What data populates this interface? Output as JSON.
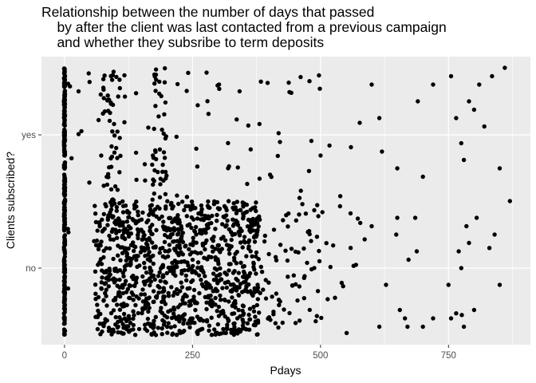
{
  "chart_data": {
    "type": "scatter",
    "title": [
      "Relationship between the number of days that passed",
      "    by after the client was last contacted from a previous campaign",
      "    and whether they subsribe to term deposits"
    ],
    "xlabel": "Pdays",
    "ylabel": "Clients subscribed?",
    "x_ticks": [
      0,
      250,
      500,
      750
    ],
    "x_tick_labels": [
      "0",
      "250",
      "500",
      "750"
    ],
    "xlim": [
      -45,
      910
    ],
    "categories": [
      "no",
      "yes"
    ],
    "y_jitter": 0.4,
    "grid": true,
    "background": "#ebebeb",
    "grid_major_color": "#ffffff",
    "point_color": "#000000",
    "series": [
      {
        "category": "no",
        "dense_ranges": [
          [
            -1,
            1
          ],
          [
            60,
            120
          ],
          [
            120,
            200
          ],
          [
            200,
            380
          ]
        ],
        "spread_x": [
          5,
          60,
          110,
          140,
          170,
          190,
          210,
          250,
          280,
          300,
          330,
          350,
          370,
          380,
          385,
          390,
          395,
          400,
          405,
          410,
          415,
          420,
          425,
          430,
          435,
          440,
          445,
          450,
          455,
          460,
          465,
          470,
          475,
          480,
          485,
          490,
          495,
          500,
          505,
          510,
          515,
          520,
          525,
          530,
          535,
          540,
          545,
          550,
          555,
          560,
          565,
          570,
          575,
          580,
          590
        ],
        "sparse_points": [
          [
            600,
            0.25
          ],
          [
            615,
            -0.35
          ],
          [
            628,
            -0.1
          ],
          [
            648,
            0.2
          ],
          [
            650,
            0.3
          ],
          [
            655,
            -0.25
          ],
          [
            665,
            -0.3
          ],
          [
            670,
            -0.35
          ],
          [
            672,
            0.05
          ],
          [
            685,
            0.3
          ],
          [
            688,
            0.1
          ],
          [
            700,
            -0.35
          ],
          [
            720,
            -0.3
          ],
          [
            750,
            -0.1
          ],
          [
            755,
            -0.3
          ],
          [
            765,
            -0.27
          ],
          [
            770,
            0.1
          ],
          [
            775,
            0.0
          ],
          [
            776,
            -0.28
          ],
          [
            780,
            -0.35
          ],
          [
            785,
            0.25
          ],
          [
            790,
            0.15
          ],
          [
            800,
            -0.25
          ],
          [
            805,
            0.3
          ],
          [
            830,
            0.12
          ],
          [
            840,
            0.2
          ],
          [
            850,
            -0.1
          ],
          [
            870,
            0.4
          ]
        ]
      },
      {
        "category": "yes",
        "dense_ranges": [
          [
            -1,
            1
          ],
          [
            75,
            110
          ],
          [
            170,
            200
          ]
        ],
        "spread_x": [
          10,
          30,
          50,
          70,
          90,
          120,
          140,
          160,
          180,
          200,
          220,
          240,
          260,
          280,
          300,
          320,
          340,
          360,
          380,
          400,
          420,
          440,
          460,
          480,
          500,
          520,
          540,
          560,
          580
        ],
        "sparse_points": [
          [
            600,
            0.3
          ],
          [
            615,
            0.1
          ],
          [
            620,
            -0.1
          ],
          [
            650,
            -0.2
          ],
          [
            690,
            0.2
          ],
          [
            700,
            -0.25
          ],
          [
            720,
            0.3
          ],
          [
            755,
            0.35
          ],
          [
            765,
            0.1
          ],
          [
            775,
            -0.05
          ],
          [
            780,
            -0.15
          ],
          [
            790,
            0.2
          ],
          [
            800,
            0.15
          ],
          [
            810,
            0.3
          ],
          [
            820,
            0.05
          ],
          [
            835,
            0.35
          ],
          [
            850,
            -0.2
          ],
          [
            860,
            0.4
          ]
        ]
      }
    ]
  }
}
